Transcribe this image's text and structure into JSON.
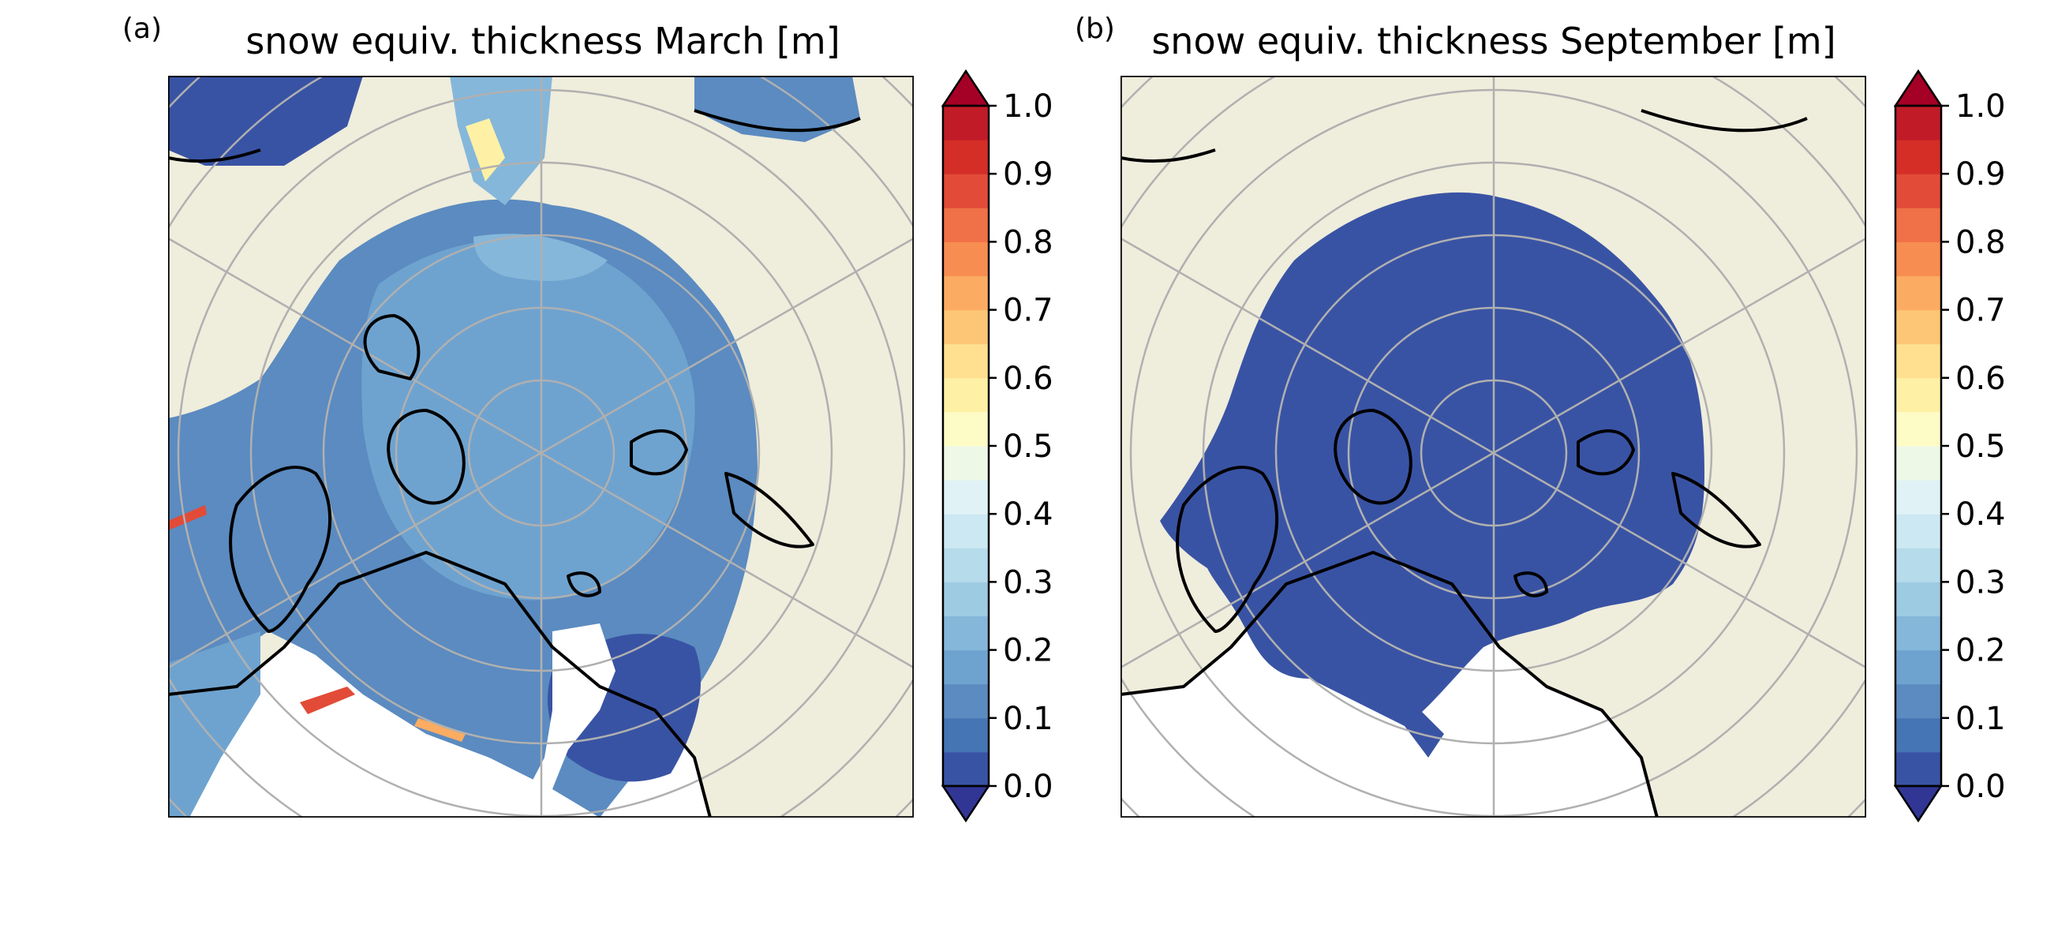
{
  "figure": {
    "panels": [
      {
        "id": "a",
        "label": "(a)",
        "title": "snow equiv. thickness March [m]",
        "month": "March"
      },
      {
        "id": "b",
        "label": "(b)",
        "title": "snow equiv. thickness September [m]",
        "month": "September"
      }
    ],
    "colorbar": {
      "ticks": [
        "0.0",
        "0.1",
        "0.2",
        "0.3",
        "0.4",
        "0.5",
        "0.6",
        "0.7",
        "0.8",
        "0.9",
        "1.0"
      ],
      "min": 0.0,
      "max": 1.0,
      "step": 0.05,
      "extend": "both",
      "colormap": "RdYlBu_r",
      "colors": [
        "#3953a4",
        "#4575b4",
        "#5b8bc0",
        "#6fa3cf",
        "#85b7da",
        "#9dcbe2",
        "#b6dbea",
        "#cce8f2",
        "#e0f2f5",
        "#eef8e7",
        "#fdfcc6",
        "#fef1a6",
        "#fee090",
        "#fdc676",
        "#fcac62",
        "#f88d52",
        "#f07047",
        "#e24b37",
        "#d42e27",
        "#c11b28"
      ],
      "under_color": "#313695",
      "over_color": "#a50026"
    },
    "map": {
      "projection": "north-polar-stereographic",
      "land_color": "#efeddc",
      "no_ice_color": "#ffffff",
      "gridline_color": "#b0b0b0",
      "coastline_color": "#000000"
    }
  }
}
